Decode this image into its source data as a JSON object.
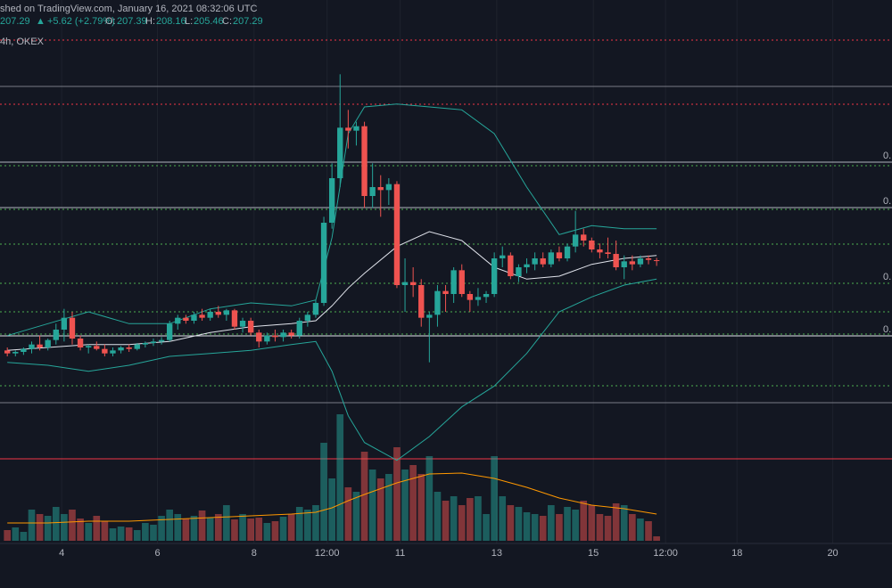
{
  "chart_data": {
    "type": "candlestick",
    "header": {
      "published": "shed on TradingView.com, January 16, 2021 08:32:06 UTC",
      "arrow": "▲",
      "change": "+5.62 (+2.79%)",
      "open_label": "O:",
      "high_label": "H:",
      "low_label": "L:",
      "close_label": "C:",
      "interval": "4h, OKEX"
    },
    "up_color": "#26a69a",
    "down_color": "#ef5350",
    "xlim": [
      -0.9,
      109
    ],
    "ylim": [
      112,
      283
    ],
    "xticks": [
      {
        "value": 6.7,
        "label": "4"
      },
      {
        "value": 18.5,
        "label": "6"
      },
      {
        "value": 30.4,
        "label": "8"
      },
      {
        "value": 39.4,
        "label": "12:00"
      },
      {
        "value": 48.4,
        "label": "11"
      },
      {
        "value": 60.3,
        "label": "13"
      },
      {
        "value": 72.2,
        "label": "15"
      },
      {
        "value": 81.1,
        "label": "12:00"
      },
      {
        "value": 89.9,
        "label": "18"
      },
      {
        "value": 101.7,
        "label": "20"
      }
    ],
    "grid": true,
    "ohlc": [
      [
        177,
        178,
        175,
        176
      ],
      [
        176,
        177,
        175,
        176.5
      ],
      [
        176.5,
        178,
        175.5,
        177.5
      ],
      [
        177.5,
        180,
        176,
        179
      ],
      [
        179,
        182,
        177,
        178
      ],
      [
        178,
        181,
        177,
        180.5
      ],
      [
        180.5,
        186,
        179,
        184
      ],
      [
        184,
        191,
        180,
        188
      ],
      [
        188,
        190,
        179,
        181
      ],
      [
        181,
        182,
        177,
        178
      ],
      [
        178,
        179,
        176,
        178.5
      ],
      [
        178.5,
        180,
        177,
        177.5
      ],
      [
        177.5,
        179,
        175,
        176
      ],
      [
        176,
        178,
        175,
        177
      ],
      [
        177,
        178.5,
        176,
        178
      ],
      [
        178,
        179,
        176.5,
        177.5
      ],
      [
        177.5,
        179.5,
        177,
        179
      ],
      [
        179,
        180,
        178,
        179.5
      ],
      [
        179.5,
        181,
        178.5,
        180
      ],
      [
        180,
        181.5,
        179,
        180.5
      ],
      [
        180.5,
        187,
        180,
        186
      ],
      [
        186,
        189,
        184,
        188
      ],
      [
        188,
        189,
        186,
        187
      ],
      [
        187,
        190,
        186,
        189
      ],
      [
        189,
        191,
        187,
        188
      ],
      [
        188,
        191,
        187,
        190
      ],
      [
        190,
        192,
        188,
        189
      ],
      [
        189,
        191,
        187,
        190.5
      ],
      [
        190.5,
        191,
        184,
        185
      ],
      [
        185,
        188,
        183,
        187
      ],
      [
        187,
        188,
        182,
        183
      ],
      [
        183,
        184,
        178,
        180
      ],
      [
        180,
        183,
        179,
        182
      ],
      [
        182,
        184,
        180,
        181.5
      ],
      [
        181.5,
        184,
        180,
        183
      ],
      [
        183,
        184,
        181,
        182
      ],
      [
        182,
        188,
        181,
        187
      ],
      [
        187,
        190,
        185,
        189
      ],
      [
        189,
        194,
        188,
        193
      ],
      [
        193,
        222,
        192,
        220
      ],
      [
        220,
        240,
        218,
        235
      ],
      [
        235,
        270,
        232,
        252
      ],
      [
        252,
        258,
        245,
        251
      ],
      [
        251,
        254,
        246,
        252.5
      ],
      [
        252.5,
        254,
        225,
        229
      ],
      [
        229,
        240,
        225,
        232
      ],
      [
        232,
        236,
        222,
        231
      ],
      [
        231,
        235,
        226,
        233
      ],
      [
        233,
        234,
        198,
        199
      ],
      [
        199,
        208,
        190,
        200
      ],
      [
        200,
        205,
        195,
        199
      ],
      [
        199,
        201,
        185,
        188
      ],
      [
        188,
        190,
        173,
        189
      ],
      [
        189,
        199,
        185,
        197
      ],
      [
        197,
        199,
        190,
        196
      ],
      [
        196,
        205,
        193,
        204
      ],
      [
        204,
        206,
        195,
        196
      ],
      [
        196,
        197,
        190,
        194
      ],
      [
        194,
        198,
        192,
        195
      ],
      [
        195,
        197,
        193,
        196
      ],
      [
        196,
        210,
        195,
        208
      ],
      [
        208,
        212,
        205,
        209
      ],
      [
        209,
        210,
        201,
        202
      ],
      [
        202,
        206,
        200,
        205
      ],
      [
        205,
        208,
        203,
        206
      ],
      [
        206,
        210,
        204,
        208
      ],
      [
        208,
        210,
        205,
        206
      ],
      [
        206,
        211,
        205,
        210
      ],
      [
        210,
        212,
        207,
        208
      ],
      [
        208,
        213,
        207,
        212
      ],
      [
        212,
        224,
        210,
        216
      ],
      [
        216,
        218,
        212,
        214
      ],
      [
        214,
        215,
        210,
        211
      ],
      [
        211,
        213,
        208,
        210
      ],
      [
        210,
        215,
        208,
        209.5
      ],
      [
        209.5,
        214,
        204,
        205
      ],
      [
        205,
        209,
        201,
        207
      ],
      [
        207,
        209,
        204,
        206
      ],
      [
        206,
        209,
        205,
        208
      ],
      [
        208,
        209,
        206,
        207.5
      ],
      [
        207.39,
        208.16,
        205.46,
        207.29
      ]
    ],
    "volume": [
      12,
      15,
      10,
      35,
      30,
      28,
      38,
      30,
      35,
      25,
      20,
      28,
      22,
      14,
      16,
      15,
      12,
      20,
      18,
      28,
      35,
      30,
      25,
      28,
      34,
      26,
      30,
      40,
      24,
      30,
      25,
      26,
      20,
      22,
      27,
      30,
      38,
      35,
      40,
      110,
      70,
      142,
      60,
      55,
      100,
      80,
      70,
      75,
      105,
      80,
      85,
      75,
      95,
      55,
      45,
      50,
      40,
      48,
      50,
      30,
      95,
      50,
      40,
      38,
      32,
      30,
      28,
      40,
      30,
      38,
      35,
      45,
      40,
      30,
      28,
      42,
      40,
      30,
      25,
      22,
      5
    ],
    "vlim": [
      0,
      200
    ],
    "bollinger": {
      "x": [
        0,
        5,
        10,
        15,
        20,
        25,
        30,
        35,
        38,
        40,
        42,
        44,
        48,
        52,
        56,
        60,
        64,
        68,
        72,
        76,
        80
      ],
      "upper": [
        182,
        186,
        190,
        186,
        186,
        191,
        193,
        192,
        194,
        215,
        250,
        259,
        260,
        259,
        258,
        250,
        232,
        216,
        219,
        218,
        218
      ],
      "middle": [
        177,
        178,
        179,
        179,
        180,
        183,
        185,
        186,
        187,
        192,
        198,
        203,
        212,
        217,
        214,
        205,
        201,
        202,
        206,
        208,
        209
      ],
      "lower": [
        173,
        172,
        170,
        172,
        175,
        176,
        177,
        179,
        180,
        170,
        155,
        146,
        140,
        148,
        158,
        165,
        176,
        190,
        195,
        199,
        201
      ],
      "band_color": "#26a69a",
      "middle_color": "#e0e3eb"
    },
    "volume_ma": {
      "x": [
        0,
        5,
        10,
        15,
        20,
        25,
        30,
        35,
        38,
        40,
        42,
        44,
        48,
        52,
        56,
        60,
        64,
        68,
        72,
        76,
        80
      ],
      "values": [
        20,
        20,
        22,
        22,
        24,
        26,
        28,
        30,
        32,
        37,
        45,
        52,
        65,
        75,
        76,
        70,
        60,
        48,
        40,
        36,
        30
      ],
      "color": "#ff9800"
    },
    "levels": [
      {
        "value": 281.5,
        "color": "#f23645",
        "style": "dotted"
      },
      {
        "value": 265.9,
        "color": "#787b86",
        "style": "solid"
      },
      {
        "value": 259.9,
        "color": "#f23645",
        "style": "dotted"
      },
      {
        "value": 240.4,
        "color": "#b2b5be",
        "style": "solid",
        "label": "0."
      },
      {
        "value": 239.2,
        "color": "#4caf50",
        "style": "dotted"
      },
      {
        "value": 225.1,
        "color": "#b2b5be",
        "style": "solid",
        "label": "0."
      },
      {
        "value": 224.5,
        "color": "#4caf50",
        "style": "dotted"
      },
      {
        "value": 212.8,
        "color": "#4caf50",
        "style": "dotted"
      },
      {
        "value": 199.6,
        "color": "#4caf50",
        "style": "dotted",
        "label": "0."
      },
      {
        "value": 190,
        "color": "#4caf50",
        "style": "dotted"
      },
      {
        "value": 181.9,
        "color": "#e0e3eb",
        "style": "solid",
        "label": "0."
      },
      {
        "value": 182.5,
        "color": "#4caf50",
        "style": "dotted"
      },
      {
        "value": 165.1,
        "color": "#4caf50",
        "style": "dotted"
      },
      {
        "value": 159.4,
        "color": "#787b86",
        "style": "solid"
      },
      {
        "value": 140.5,
        "color": "#f23645",
        "style": "solid"
      }
    ]
  }
}
